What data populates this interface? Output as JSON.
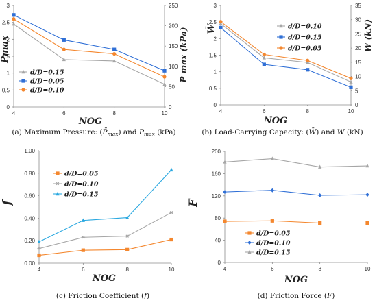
{
  "colors": {
    "grey": "#a6a6a6",
    "blue": "#2f6fd6",
    "orange": "#f4872e",
    "cyan": "#2aa8e0"
  },
  "chart_data": [
    {
      "id": "a",
      "type": "line",
      "x": [
        4,
        6,
        8,
        10
      ],
      "xlabel": "NOG",
      "ylabel": "P̄max",
      "ylabel_right": "P max (kPa)",
      "ylim": [
        0,
        3
      ],
      "yticks": [
        "0",
        "0.5",
        "1",
        "1.5",
        "2",
        "2.5",
        "3"
      ],
      "ylim_right": [
        0,
        250
      ],
      "yticks_right": [
        "0",
        "50",
        "100",
        "150",
        "200",
        "250"
      ],
      "xticks": [
        "4",
        "6",
        "8",
        "10"
      ],
      "legend_position": "lower-left",
      "series": [
        {
          "name": "d/D=0.15",
          "color": "#a6a6a6",
          "marker": "triangle",
          "values": [
            2.45,
            1.4,
            1.36,
            0.67
          ]
        },
        {
          "name": "d/D=0.05",
          "color": "#2f6fd6",
          "marker": "square",
          "values": [
            2.72,
            1.98,
            1.7,
            1.07
          ]
        },
        {
          "name": "d/D=0.10",
          "color": "#f4872e",
          "marker": "circle",
          "values": [
            2.6,
            1.7,
            1.57,
            0.89
          ]
        }
      ],
      "caption_parts": [
        "(a) Maximum Pressure: (",
        "P̄",
        "max",
        ") and ",
        "P",
        "max",
        " (kPa)"
      ]
    },
    {
      "id": "b",
      "type": "line",
      "x": [
        4,
        6,
        8,
        10
      ],
      "xlabel": "NOG",
      "ylabel": "W̄",
      "ylabel_right": "W (kN)",
      "ylim": [
        0,
        3
      ],
      "yticks": [
        "0",
        "0.5",
        "1",
        "1.5",
        "2",
        "2.5",
        "3"
      ],
      "ylim_right": [
        0,
        35
      ],
      "yticks_right": [
        "0",
        "5",
        "10",
        "15",
        "20",
        "25",
        "30",
        "35"
      ],
      "xticks": [
        "4",
        "6",
        "8",
        "10"
      ],
      "legend_position": "top-right",
      "series": [
        {
          "name": "d/D=0.10",
          "color": "#a6a6a6",
          "marker": "triangle",
          "values": [
            2.45,
            1.42,
            1.28,
            0.69
          ]
        },
        {
          "name": "d/D=0.15",
          "color": "#2f6fd6",
          "marker": "square",
          "values": [
            2.33,
            1.22,
            1.06,
            0.53
          ]
        },
        {
          "name": "d/D=0.05",
          "color": "#f4872e",
          "marker": "circle",
          "values": [
            2.51,
            1.52,
            1.34,
            0.8
          ]
        }
      ],
      "caption_parts": [
        "(b) Load-Carrying Capacity: (",
        "W̄",
        ") and ",
        "W",
        " (kN)"
      ]
    },
    {
      "id": "c",
      "type": "line",
      "x": [
        4,
        6,
        8,
        10
      ],
      "xlabel": "NOG",
      "ylabel": "f",
      "ylim": [
        0,
        1
      ],
      "yticks": [
        "0.00",
        "0.20",
        "0.40",
        "0.60",
        "0.80",
        "1.00"
      ],
      "xticks": [
        "4",
        "6",
        "8",
        "10"
      ],
      "legend_position": "top-left",
      "series": [
        {
          "name": "d/D=0.05",
          "color": "#f4872e",
          "marker": "square",
          "values": [
            0.07,
            0.115,
            0.12,
            0.21
          ]
        },
        {
          "name": "d/D=0.10",
          "color": "#a6a6a6",
          "marker": "asterisk",
          "values": [
            0.13,
            0.23,
            0.24,
            0.45
          ]
        },
        {
          "name": "d/D=0.15",
          "color": "#2aa8e0",
          "marker": "triangle",
          "values": [
            0.19,
            0.38,
            0.405,
            0.83
          ]
        }
      ],
      "caption_parts": [
        "(c) Friction Coefficient (",
        "f",
        ")"
      ]
    },
    {
      "id": "d",
      "type": "line",
      "x": [
        4,
        6,
        8,
        10
      ],
      "xlabel": "NOG",
      "ylabel": "F",
      "ylim": [
        0,
        200
      ],
      "yticks": [
        "0",
        "40",
        "80",
        "120",
        "160",
        "200"
      ],
      "xticks": [
        "4",
        "6",
        "8",
        "10"
      ],
      "legend_position": "lower-left",
      "series": [
        {
          "name": "d/D=0.05",
          "color": "#f4872e",
          "marker": "square",
          "values": [
            74,
            75,
            71,
            71
          ]
        },
        {
          "name": "d/D=0.10",
          "color": "#2f6fd6",
          "marker": "diamond",
          "values": [
            127,
            130,
            121,
            122
          ]
        },
        {
          "name": "d/D=0.15",
          "color": "#a6a6a6",
          "marker": "triangle",
          "values": [
            181,
            187,
            172,
            174
          ]
        }
      ],
      "caption_parts": [
        "(d) Friction Force (",
        "F",
        ")"
      ]
    }
  ]
}
